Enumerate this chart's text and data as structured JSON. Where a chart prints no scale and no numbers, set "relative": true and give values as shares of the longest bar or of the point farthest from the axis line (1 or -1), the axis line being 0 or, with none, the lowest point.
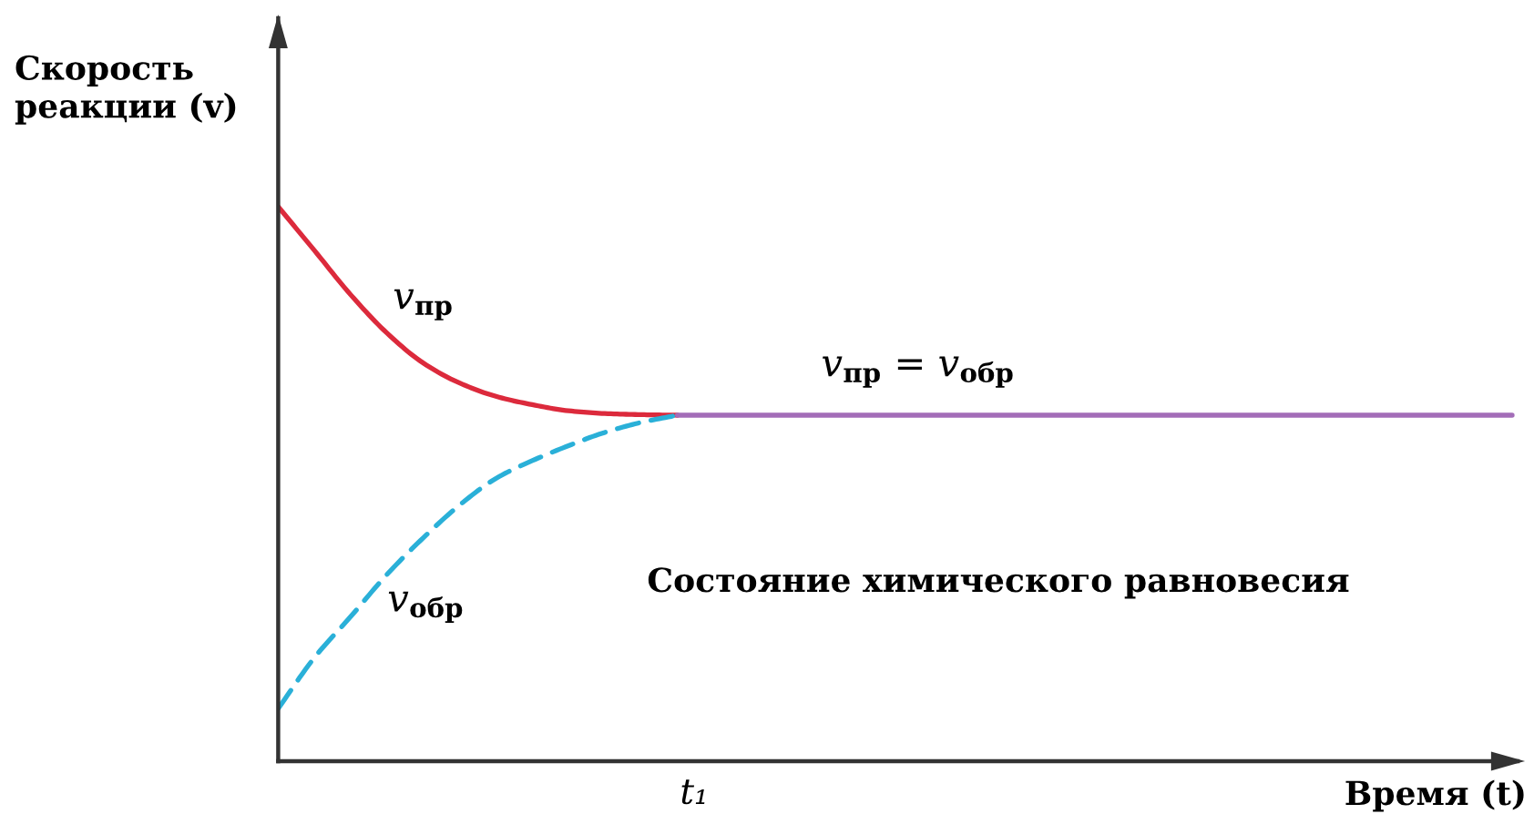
{
  "chart_data": {
    "type": "line",
    "relative": true,
    "ylabel": "Скорость реакции (v)",
    "xlabel": "Время (t)",
    "annotations": [
      "Состояние химического равновесия",
      "t₁"
    ],
    "categories": [
      null,
      null,
      null,
      null,
      null,
      null,
      null,
      null,
      null,
      null,
      null,
      null,
      null,
      null,
      null,
      null,
      null,
      null,
      null,
      null,
      null,
      null,
      null,
      null,
      null,
      null,
      null,
      null,
      null,
      null,
      null,
      null,
      null,
      null,
      null
    ],
    "series": [
      {
        "name": "v$_{пр}$",
        "color": "#dc2a3c",
        "line_style": "solid",
        "values": [
          1,
          0.921,
          0.841,
          0.772,
          0.718,
          0.682,
          0.658,
          0.643,
          0.632,
          0.627,
          0.625,
          0.624,
          null,
          null,
          null,
          null,
          null,
          null,
          null,
          null,
          null,
          null,
          null,
          null,
          null,
          null,
          null,
          null,
          null,
          null,
          null,
          null,
          null,
          null,
          null
        ]
      },
      {
        "name": "v$_{обр}$",
        "color": "#2ab0d8",
        "line_style": "dashed",
        "values": [
          0.095,
          0.187,
          0.261,
          0.337,
          0.403,
          0.462,
          0.51,
          0.542,
          0.569,
          0.593,
          0.611,
          0.624,
          null,
          null,
          null,
          null,
          null,
          null,
          null,
          null,
          null,
          null,
          null,
          null,
          null,
          null,
          null,
          null,
          null,
          null,
          null,
          null,
          null,
          null,
          null
        ]
      },
      {
        "name": "v$_{пр}$ = v$_{обр}$",
        "color": "#a36db8",
        "line_style": "solid",
        "values": [
          null,
          null,
          null,
          null,
          null,
          null,
          null,
          null,
          null,
          null,
          null,
          0.624,
          0.624,
          0.624,
          0.624,
          0.624,
          0.624,
          0.624,
          0.624,
          0.624,
          0.624,
          0.624,
          0.624,
          0.624,
          0.624,
          0.624,
          0.624,
          0.624,
          0.624,
          0.624,
          0.624,
          0.624,
          0.624,
          0.624,
          0.624
        ]
      }
    ]
  }
}
